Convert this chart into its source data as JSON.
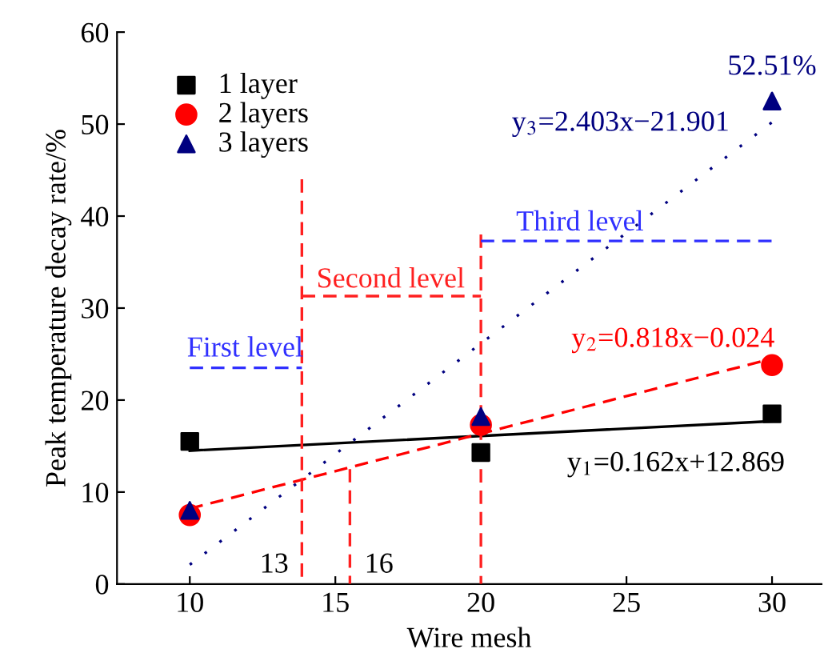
{
  "chart_data": {
    "type": "scatter",
    "xlabel": "Wire mesh",
    "ylabel": "Peak temperature decay rate/%",
    "xlim": [
      7.5,
      31.7
    ],
    "xticks": [
      10,
      15,
      20,
      25,
      30
    ],
    "ylim": [
      0,
      60
    ],
    "yticks": [
      0,
      10,
      20,
      30,
      40,
      50,
      60
    ],
    "grid": false,
    "legend": "top left",
    "series": [
      {
        "name": "1 layer",
        "color": "#000000",
        "marker": "square",
        "x": [
          10,
          20,
          30
        ],
        "values": [
          15.5,
          14.3,
          18.5
        ]
      },
      {
        "name": "2 layers",
        "color": "#ff0000",
        "marker": "circle",
        "x": [
          10,
          20,
          30
        ],
        "values": [
          7.5,
          17.3,
          23.8
        ]
      },
      {
        "name": "3 layers",
        "color": "#000080",
        "marker": "triangle",
        "x": [
          10,
          20,
          30
        ],
        "values": [
          8,
          18.2,
          52.51
        ],
        "value_labels": [
          null,
          null,
          "52.51%"
        ]
      },
      {
        "type": "line",
        "color": "#000000",
        "line_style": "solid",
        "x": [
          10,
          30
        ],
        "values": [
          14.5,
          17.7
        ]
      },
      {
        "type": "line",
        "color": "#ff0000",
        "line_style": "dashed",
        "x": [
          10,
          30
        ],
        "values": [
          8.2,
          24.5
        ]
      },
      {
        "type": "line",
        "color": "#000080",
        "line_style": "dotted",
        "x": [
          10,
          30
        ],
        "values": [
          2.1,
          50.2
        ]
      },
      {
        "type": "line",
        "color": "#ff2020",
        "line_style": "dashed",
        "x": [
          13.85,
          13.85
        ],
        "values": [
          0,
          44
        ]
      },
      {
        "type": "line",
        "color": "#ff2020",
        "line_style": "dashed",
        "x": [
          15.5,
          15.5
        ],
        "values": [
          0,
          12.5
        ]
      },
      {
        "type": "line",
        "color": "#ff2020",
        "line_style": "dashed",
        "x": [
          20,
          20
        ],
        "values": [
          0,
          38
        ]
      },
      {
        "type": "line",
        "color": "#3030ff",
        "line_style": "dashed",
        "x": [
          10,
          13.85
        ],
        "values": [
          23.5,
          23.5
        ]
      },
      {
        "type": "line",
        "color": "#ff2020",
        "line_style": "dashed",
        "x": [
          13.85,
          20
        ],
        "values": [
          31.3,
          31.3
        ]
      },
      {
        "type": "line",
        "color": "#3030ff",
        "line_style": "dashed",
        "x": [
          20,
          30
        ],
        "values": [
          37.3,
          37.3
        ]
      }
    ],
    "annotations": [
      "First level",
      "Second level",
      "Third level",
      "13",
      "16",
      "y$_{3}$=2.403x−21.901",
      "y$_{2}$=0.818x−0.024",
      "y$_{1}$=0.162x+12.869"
    ]
  }
}
